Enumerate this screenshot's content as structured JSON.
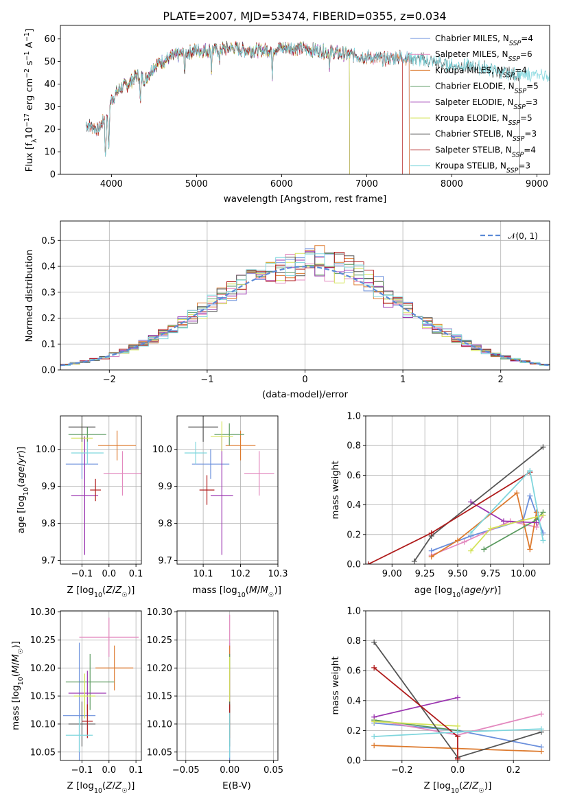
{
  "title": "PLATE=2007, MJD=53474, FIBERID=0355, z=0.034",
  "colors": {
    "Chabrier MILES": "#6a8fdc",
    "Salpeter MILES": "#e389bf",
    "Kroupa MILES": "#dd7a2e",
    "Chabrier ELODIE": "#5a9a5f",
    "Salpeter ELODIE": "#9b35b0",
    "Kroupa ELODIE": "#d4e35a",
    "Chabrier STELIB": "#555555",
    "Salpeter STELIB": "#b01c1c",
    "Kroupa STELIB": "#7fd6dd",
    "normal": "#5b8ad6"
  },
  "chart_data": [
    {
      "id": "spectrum",
      "type": "line",
      "xlabel": "wavelength [Angstrom, rest frame]",
      "ylabel": "Flux [f_λ 10^-17 erg cm^-2 s^-1 A^-1]",
      "xlim": [
        3400,
        9150
      ],
      "ylim": [
        0,
        66
      ],
      "xticks": [
        4000,
        5000,
        6000,
        7000,
        8000,
        9000
      ],
      "yticks": [
        0,
        10,
        20,
        30,
        40,
        50,
        60
      ],
      "legend_position": "top-right",
      "series": [
        {
          "name": "Chabrier MILES",
          "nssp": "4",
          "range": [
            3700,
            7500
          ]
        },
        {
          "name": "Salpeter MILES",
          "nssp": "6",
          "range": [
            3700,
            7500
          ]
        },
        {
          "name": "Kroupa MILES",
          "nssp": "4",
          "range": [
            3700,
            7500
          ]
        },
        {
          "name": "Chabrier ELODIE",
          "nssp": "5",
          "range": [
            3900,
            6800
          ]
        },
        {
          "name": "Salpeter ELODIE",
          "nssp": "3",
          "range": [
            3900,
            6800
          ]
        },
        {
          "name": "Kroupa ELODIE",
          "nssp": "5",
          "range": [
            3900,
            6800
          ]
        },
        {
          "name": "Chabrier STELIB",
          "nssp": "3",
          "range": [
            3700,
            8800
          ]
        },
        {
          "name": "Salpeter STELIB",
          "nssp": "4",
          "range": [
            3700,
            7420
          ]
        },
        {
          "name": "Kroupa STELIB",
          "nssp": "3",
          "range": [
            3700,
            9150
          ]
        }
      ],
      "continuum": {
        "x": [
          3700,
          3850,
          3950,
          4000,
          4100,
          4200,
          4300,
          4400,
          4500,
          4700,
          4900,
          5000,
          5200,
          5400,
          5600,
          5800,
          6000,
          6200,
          6400,
          6600,
          6800,
          7000,
          7200,
          7400,
          7600,
          7800,
          8000,
          8200,
          8400,
          8600,
          8800,
          9000,
          9150
        ],
        "y": [
          22,
          20,
          27,
          33,
          38,
          40,
          44,
          42,
          48,
          52,
          54,
          55,
          55,
          56,
          55,
          55,
          56,
          56,
          55,
          54,
          53,
          52,
          51,
          52,
          51,
          50,
          48,
          48,
          47,
          45,
          44,
          44,
          44
        ]
      },
      "dips": [
        {
          "x": 3930,
          "y": 6
        },
        {
          "x": 3968,
          "y": 10
        },
        {
          "x": 4340,
          "y": 30
        },
        {
          "x": 4861,
          "y": 42
        },
        {
          "x": 5175,
          "y": 44
        },
        {
          "x": 5270,
          "y": 47
        },
        {
          "x": 5890,
          "y": 42
        },
        {
          "x": 6563,
          "y": 45
        }
      ]
    },
    {
      "id": "residual-histogram",
      "type": "line",
      "xlabel": "(data-model)/error",
      "ylabel": "Normed distribution",
      "xlim": [
        -2.5,
        2.5
      ],
      "ylim": [
        0,
        0.575
      ],
      "xticks": [
        -2,
        -1,
        0,
        1,
        2
      ],
      "yticks": [
        0.0,
        0.1,
        0.2,
        0.3,
        0.4,
        0.5
      ],
      "legend": "𝒩(0, 1)",
      "bin_width": 0.1
    },
    {
      "id": "age-vs-Z",
      "type": "scatter",
      "xlabel": "Z [log10(Z/Z☉)]",
      "ylabel": "age  [log10(age/yr)]",
      "xlim": [
        -0.18,
        0.12
      ],
      "ylim": [
        9.69,
        10.09
      ],
      "xticks": [
        -0.1,
        0.0,
        0.1
      ],
      "yticks": [
        9.7,
        9.8,
        9.9,
        10.0
      ],
      "points": [
        {
          "series": "Chabrier MILES",
          "x": -0.1,
          "y": 9.96,
          "xerr": 0.06,
          "yerr": 0.04
        },
        {
          "series": "Salpeter MILES",
          "x": 0.05,
          "y": 9.935,
          "xerr": 0.07,
          "yerr": 0.06
        },
        {
          "series": "Kroupa MILES",
          "x": 0.03,
          "y": 10.01,
          "xerr": 0.07,
          "yerr": 0.04
        },
        {
          "series": "Chabrier ELODIE",
          "x": -0.08,
          "y": 10.04,
          "xerr": 0.07,
          "yerr": 0.02
        },
        {
          "series": "Salpeter ELODIE",
          "x": -0.09,
          "y": 9.875,
          "xerr": 0.05,
          "yerr": 0.16
        },
        {
          "series": "Kroupa ELODIE",
          "x": -0.1,
          "y": 10.03,
          "xerr": 0.04,
          "yerr": 0.04
        },
        {
          "series": "Chabrier STELIB",
          "x": -0.1,
          "y": 10.06,
          "xerr": 0.05,
          "yerr": 0.04
        },
        {
          "series": "Salpeter STELIB",
          "x": -0.05,
          "y": 9.89,
          "xerr": 0.02,
          "yerr": 0.03
        },
        {
          "series": "Kroupa STELIB",
          "x": -0.08,
          "y": 9.99,
          "xerr": 0.06,
          "yerr": 0.03
        }
      ]
    },
    {
      "id": "age-vs-mass",
      "type": "scatter",
      "xlabel": "mass [log10(M/M☉)]",
      "ylabel": "",
      "xlim": [
        10.03,
        10.3
      ],
      "ylim": [
        9.69,
        10.09
      ],
      "xticks": [
        10.1,
        10.2,
        10.3
      ],
      "yticks": [
        9.7,
        9.8,
        9.9,
        10.0
      ],
      "points": [
        {
          "series": "Chabrier MILES",
          "x": 10.12,
          "y": 9.96,
          "xerr": 0.05,
          "yerr": 0.04
        },
        {
          "series": "Salpeter MILES",
          "x": 10.25,
          "y": 9.935,
          "xerr": 0.04,
          "yerr": 0.06
        },
        {
          "series": "Kroupa MILES",
          "x": 10.2,
          "y": 10.01,
          "xerr": 0.04,
          "yerr": 0.04
        },
        {
          "series": "Chabrier ELODIE",
          "x": 10.17,
          "y": 10.04,
          "xerr": 0.04,
          "yerr": 0.03
        },
        {
          "series": "Salpeter ELODIE",
          "x": 10.15,
          "y": 9.875,
          "xerr": 0.03,
          "yerr": 0.16
        },
        {
          "series": "Kroupa ELODIE",
          "x": 10.15,
          "y": 10.035,
          "xerr": 0.03,
          "yerr": 0.04
        },
        {
          "series": "Chabrier STELIB",
          "x": 10.1,
          "y": 10.06,
          "xerr": 0.04,
          "yerr": 0.04
        },
        {
          "series": "Salpeter STELIB",
          "x": 10.11,
          "y": 9.89,
          "xerr": 0.02,
          "yerr": 0.04
        },
        {
          "series": "Kroupa STELIB",
          "x": 10.08,
          "y": 9.99,
          "xerr": 0.03,
          "yerr": 0.03
        }
      ]
    },
    {
      "id": "mass-weight-vs-age",
      "type": "line",
      "xlabel": "age  [log10(age/yr)]",
      "ylabel": "mass weight",
      "xlim": [
        8.8,
        10.2
      ],
      "ylim": [
        0,
        1
      ],
      "xticks": [
        9.0,
        9.25,
        9.5,
        9.75,
        10.0
      ],
      "yticks": [
        0.0,
        0.2,
        0.4,
        0.6,
        0.8,
        1.0
      ],
      "series": [
        {
          "name": "Chabrier MILES",
          "x": [
            9.3,
            9.6,
            10.0,
            10.05,
            10.15
          ],
          "y": [
            0.09,
            0.19,
            0.3,
            0.46,
            0.21
          ]
        },
        {
          "name": "Salpeter MILES",
          "x": [
            9.3,
            9.55,
            9.9,
            10.1,
            10.15
          ],
          "y": [
            0.06,
            0.15,
            0.29,
            0.25,
            0.33
          ]
        },
        {
          "name": "Kroupa MILES",
          "x": [
            9.3,
            9.5,
            9.95,
            10.05,
            10.1
          ],
          "y": [
            0.05,
            0.16,
            0.48,
            0.1,
            0.35
          ]
        },
        {
          "name": "Chabrier ELODIE",
          "x": [
            9.7,
            10.1,
            10.15
          ],
          "y": [
            0.1,
            0.3,
            0.35
          ]
        },
        {
          "name": "Salpeter ELODIE",
          "x": [
            9.6,
            9.85,
            10.1
          ],
          "y": [
            0.42,
            0.29,
            0.28
          ]
        },
        {
          "name": "Kroupa ELODIE",
          "x": [
            9.6,
            9.75,
            10.15
          ],
          "y": [
            0.09,
            0.24,
            0.33
          ]
        },
        {
          "name": "Chabrier STELIB",
          "x": [
            9.17,
            9.3,
            10.15
          ],
          "y": [
            0.02,
            0.19,
            0.79
          ]
        },
        {
          "name": "Salpeter STELIB",
          "x": [
            8.82,
            9.3,
            10.05
          ],
          "y": [
            0.0,
            0.21,
            0.62
          ]
        },
        {
          "name": "Kroupa STELIB",
          "x": [
            9.6,
            10.05,
            10.15
          ],
          "y": [
            0.21,
            0.63,
            0.16
          ]
        }
      ]
    },
    {
      "id": "mass-vs-Z",
      "type": "scatter",
      "xlabel": "Z [log10(Z/Z☉)]",
      "ylabel": "mass [log10(M/M☉)]",
      "xlim": [
        -0.18,
        0.12
      ],
      "ylim": [
        10.035,
        10.302
      ],
      "xticks": [
        -0.1,
        0.0,
        0.1
      ],
      "yticks": [
        10.05,
        10.1,
        10.15,
        10.2,
        10.25,
        10.3
      ],
      "points": [
        {
          "series": "Chabrier MILES",
          "x": -0.11,
          "y": 10.115,
          "xerr": 0.06,
          "yerr": 0.13
        },
        {
          "series": "Salpeter MILES",
          "x": 0.0,
          "y": 10.255,
          "xerr": 0.11,
          "yerr": 0.035
        },
        {
          "series": "Kroupa MILES",
          "x": 0.02,
          "y": 10.2,
          "xerr": 0.07,
          "yerr": 0.04
        },
        {
          "series": "Chabrier ELODIE",
          "x": -0.07,
          "y": 10.175,
          "xerr": 0.09,
          "yerr": 0.05
        },
        {
          "series": "Salpeter ELODIE",
          "x": -0.08,
          "y": 10.155,
          "xerr": 0.07,
          "yerr": 0.04
        },
        {
          "series": "Kroupa ELODIE",
          "x": -0.09,
          "y": 10.15,
          "xerr": 0.04,
          "yerr": 0.04
        },
        {
          "series": "Chabrier STELIB",
          "x": -0.1,
          "y": 10.1,
          "xerr": 0.05,
          "yerr": 0.04
        },
        {
          "series": "Salpeter STELIB",
          "x": -0.08,
          "y": 10.105,
          "xerr": 0.02,
          "yerr": 0.03
        },
        {
          "series": "Kroupa STELIB",
          "x": -0.11,
          "y": 10.08,
          "xerr": 0.05,
          "yerr": 0.03
        }
      ]
    },
    {
      "id": "mass-vs-EBV",
      "type": "scatter",
      "xlabel": "E(B-V)",
      "ylabel": "",
      "xlim": [
        -0.06,
        0.055
      ],
      "ylim": [
        10.035,
        10.302
      ],
      "xticks": [
        -0.05,
        0.0,
        0.05
      ],
      "yticks": [
        10.05,
        10.1,
        10.15,
        10.2,
        10.25,
        10.3
      ],
      "points": [
        {
          "series": "Chabrier MILES",
          "x": 0.0,
          "y": 10.115,
          "xerr": 0.0,
          "yerr": 0.13
        },
        {
          "series": "Salpeter MILES",
          "x": 0.0,
          "y": 10.255,
          "xerr": 0.0,
          "yerr": 0.04
        },
        {
          "series": "Kroupa MILES",
          "x": 0.0,
          "y": 10.2,
          "xerr": 0.0,
          "yerr": 0.04
        },
        {
          "series": "Chabrier ELODIE",
          "x": 0.0,
          "y": 10.175,
          "xerr": 0.0,
          "yerr": 0.05
        },
        {
          "series": "Salpeter ELODIE",
          "x": 0.0,
          "y": 10.155,
          "xerr": 0.0,
          "yerr": 0.04
        },
        {
          "series": "Kroupa ELODIE",
          "x": 0.0,
          "y": 10.15,
          "xerr": 0.0,
          "yerr": 0.07
        },
        {
          "series": "Chabrier STELIB",
          "x": 0.0,
          "y": 10.1,
          "xerr": 0.0,
          "yerr": 0.04
        },
        {
          "series": "Salpeter STELIB",
          "x": 0.0,
          "y": 10.105,
          "xerr": 0.0,
          "yerr": 0.03
        },
        {
          "series": "Kroupa STELIB",
          "x": 0.0,
          "y": 10.08,
          "xerr": 0.0,
          "yerr": 0.04
        }
      ]
    },
    {
      "id": "mass-weight-vs-Z",
      "type": "line",
      "xlabel": "Z [log10(Z/Z☉)]",
      "ylabel": "mass weight",
      "xlim": [
        -0.33,
        0.33
      ],
      "ylim": [
        0,
        1
      ],
      "xticks": [
        -0.2,
        0.0,
        0.2
      ],
      "yticks": [
        0.0,
        0.2,
        0.4,
        0.6,
        0.8,
        1.0
      ],
      "series": [
        {
          "name": "Chabrier MILES",
          "x": [
            -0.3,
            0.0,
            0.3
          ],
          "y": [
            0.25,
            0.2,
            0.09
          ]
        },
        {
          "name": "Salpeter MILES",
          "x": [
            -0.3,
            0.0,
            0.3
          ],
          "y": [
            0.27,
            0.17,
            0.31
          ]
        },
        {
          "name": "Kroupa MILES",
          "x": [
            -0.3,
            0.0,
            0.3
          ],
          "y": [
            0.1,
            0.08,
            0.06
          ]
        },
        {
          "name": "Chabrier ELODIE",
          "x": [
            -0.3,
            0.0
          ],
          "y": [
            0.27,
            0.2
          ]
        },
        {
          "name": "Salpeter ELODIE",
          "x": [
            -0.3,
            0.0
          ],
          "y": [
            0.29,
            0.42
          ]
        },
        {
          "name": "Kroupa ELODIE",
          "x": [
            -0.3,
            0.0
          ],
          "y": [
            0.26,
            0.23
          ]
        },
        {
          "name": "Chabrier STELIB",
          "x": [
            -0.3,
            0.0,
            0.3
          ],
          "y": [
            0.79,
            0.02,
            0.19
          ]
        },
        {
          "name": "Salpeter STELIB",
          "x": [
            -0.3,
            0.0,
            0.0
          ],
          "y": [
            0.62,
            0.16,
            0.01
          ]
        },
        {
          "name": "Kroupa STELIB",
          "x": [
            -0.3,
            0.0,
            0.3
          ],
          "y": [
            0.16,
            0.19,
            0.21
          ]
        }
      ]
    }
  ]
}
